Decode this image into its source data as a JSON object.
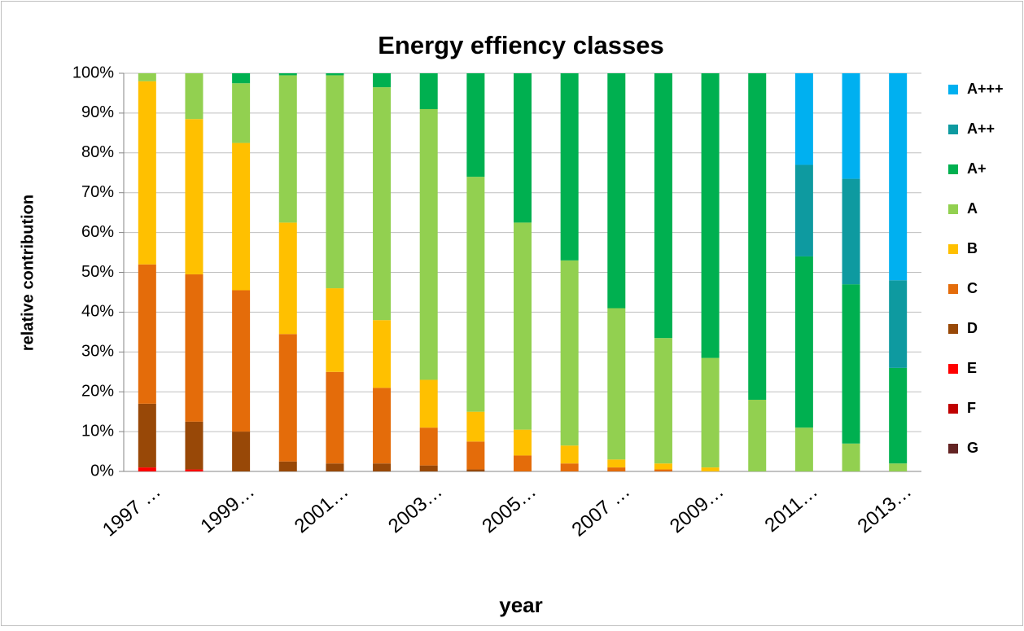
{
  "chart_data": {
    "type": "stacked-bar",
    "title": "Energy effiency classes",
    "x_label": "year",
    "y_label": "relative contribution",
    "categories": [
      "1997 …",
      null,
      "1999…",
      null,
      "2001…",
      null,
      "2003…",
      null,
      "2005…",
      null,
      "2007 …",
      null,
      "2009…",
      null,
      "2011…",
      null,
      "2013…"
    ],
    "ylim": [
      0,
      100
    ],
    "yticks": [
      {
        "value": 0,
        "label": "0%"
      },
      {
        "value": 10,
        "label": "10%"
      },
      {
        "value": 20,
        "label": "20%"
      },
      {
        "value": 30,
        "label": "30%"
      },
      {
        "value": 40,
        "label": "40%"
      },
      {
        "value": 50,
        "label": "50%"
      },
      {
        "value": 60,
        "label": "60%"
      },
      {
        "value": 70,
        "label": "70%"
      },
      {
        "value": 80,
        "label": "80%"
      },
      {
        "value": 90,
        "label": "90%"
      },
      {
        "value": 100,
        "label": "100%"
      }
    ],
    "grid": true,
    "legend": "right",
    "series": [
      {
        "name": "G",
        "color": "#632423",
        "values": [
          0,
          0,
          0,
          0,
          0,
          0,
          0,
          0,
          0,
          0,
          0,
          0,
          0,
          0,
          0,
          0,
          0
        ]
      },
      {
        "name": "F",
        "color": "#c00000",
        "values": [
          0,
          0,
          0,
          0,
          0,
          0,
          0,
          0,
          0,
          0,
          0,
          0,
          0,
          0,
          0,
          0,
          0
        ]
      },
      {
        "name": "E",
        "color": "#ff0000",
        "values": [
          1,
          0.5,
          0,
          0,
          0,
          0,
          0,
          0,
          0,
          0,
          0,
          0,
          0,
          0,
          0,
          0,
          0
        ]
      },
      {
        "name": "D",
        "color": "#984807",
        "values": [
          16,
          12,
          10,
          2.5,
          2,
          2,
          1.5,
          0.5,
          0,
          0,
          0,
          0,
          0,
          0,
          0,
          0,
          0
        ]
      },
      {
        "name": "C",
        "color": "#e46c0a",
        "values": [
          35,
          37,
          35.5,
          32,
          23,
          19,
          9.5,
          7,
          4,
          2,
          1,
          0.5,
          0,
          0,
          0,
          0,
          0
        ]
      },
      {
        "name": "B",
        "color": "#ffc000",
        "values": [
          46,
          39,
          37,
          28,
          21,
          17,
          12,
          7.5,
          6.5,
          4.5,
          2,
          1.5,
          1,
          0,
          0,
          0,
          0
        ]
      },
      {
        "name": "A",
        "color": "#92d050",
        "values": [
          2,
          11.5,
          15,
          37,
          53.5,
          58.5,
          68,
          59,
          52,
          46.5,
          38,
          31.5,
          27.5,
          18,
          11,
          7,
          2
        ]
      },
      {
        "name": "A+",
        "color": "#00b050",
        "values": [
          0,
          0,
          2.5,
          0.5,
          0.5,
          3.5,
          9,
          26,
          37.5,
          47,
          59,
          66.5,
          71.5,
          82,
          43,
          40,
          24
        ]
      },
      {
        "name": "A++",
        "color": "#0e9aa0",
        "values": [
          0,
          0,
          0,
          0,
          0,
          0,
          0,
          0,
          0,
          0,
          0,
          0,
          0,
          0,
          23,
          26.5,
          22
        ]
      },
      {
        "name": "A+++",
        "color": "#00b0f0",
        "values": [
          0,
          0,
          0,
          0,
          0,
          0,
          0,
          0,
          0,
          0,
          0,
          0,
          0,
          0,
          23,
          26.5,
          52
        ]
      }
    ]
  }
}
